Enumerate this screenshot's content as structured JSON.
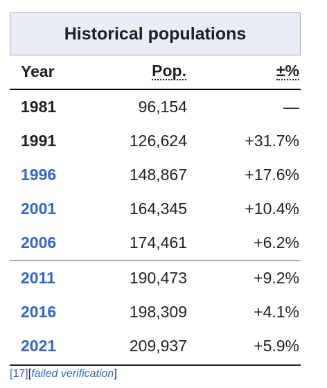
{
  "title": "Historical populations",
  "headers": {
    "year": "Year",
    "pop": "Pop.",
    "pct": "±%"
  },
  "rows": [
    {
      "year": "1981",
      "pop": "96,154",
      "pct": "—",
      "linked": false
    },
    {
      "year": "1991",
      "pop": "126,624",
      "pct": "+31.7%",
      "linked": false
    },
    {
      "year": "1996",
      "pop": "148,867",
      "pct": "+17.6%",
      "linked": true
    },
    {
      "year": "2001",
      "pop": "164,345",
      "pct": "+10.4%",
      "linked": true
    },
    {
      "year": "2006",
      "pop": "174,461",
      "pct": "+6.2%",
      "linked": true
    },
    {
      "year": "2011",
      "pop": "190,473",
      "pct": "+9.2%",
      "linked": true
    },
    {
      "year": "2016",
      "pop": "198,309",
      "pct": "+4.1%",
      "linked": true
    },
    {
      "year": "2021",
      "pop": "209,937",
      "pct": "+5.9%",
      "linked": true
    }
  ],
  "footnote": {
    "ref": "[17]",
    "bracket_open": "[",
    "note": "failed verification",
    "bracket_close": "]"
  },
  "colors": {
    "link": "#3366cc",
    "title_bg": "#eaecf8"
  }
}
